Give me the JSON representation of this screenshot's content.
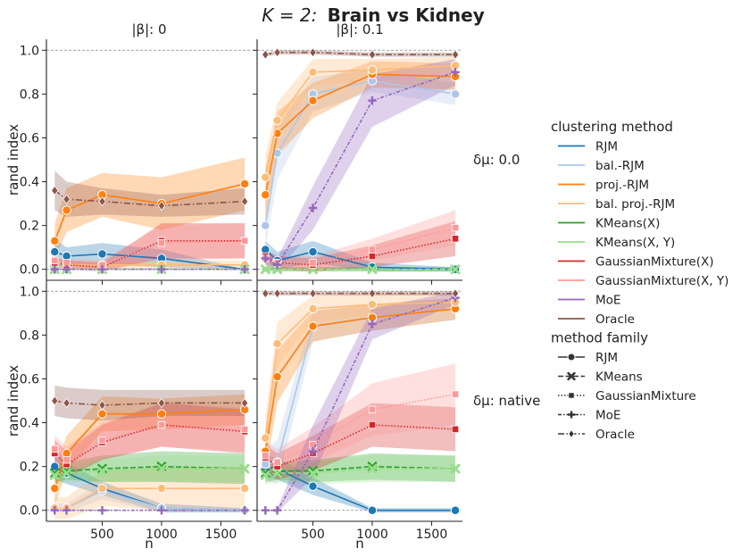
{
  "chart_data": {
    "type": "line",
    "title": "K = 2: Brain vs Kidney",
    "title_math": "K = 2:",
    "title_bold": "Brain vs Kidney",
    "xlabel": "n",
    "ylabel": "rand index",
    "xlim": [
      30,
      1760
    ],
    "ylim": [
      -0.05,
      1.05
    ],
    "x_ticks": [
      500,
      1000,
      1500
    ],
    "x_tick_labels": [
      "500",
      "1000",
      "1500"
    ],
    "y_ticks": [
      0.0,
      0.2,
      0.4,
      0.6,
      0.8,
      1.0
    ],
    "y_tick_labels": [
      "0.0",
      "0.2",
      "0.4",
      "0.6",
      "0.8",
      "1.0"
    ],
    "reference_lines": [
      0.0,
      1.0
    ],
    "col_titles": [
      "|β|: 0",
      "|β|: 0.1"
    ],
    "row_titles": [
      "δμ: 0.0",
      "δμ: native"
    ],
    "x": [
      100,
      200,
      500,
      1000,
      1700
    ],
    "legend": {
      "title_methods": "clustering method",
      "title_families": "method family",
      "methods": [
        {
          "name": "RJM",
          "color": "#1f77b4",
          "family": "RJM"
        },
        {
          "name": "bal.-RJM",
          "color": "#aec7e8",
          "family": "RJM"
        },
        {
          "name": "proj.-RJM",
          "color": "#ff7f0e",
          "family": "RJM"
        },
        {
          "name": "bal. proj.-RJM",
          "color": "#ffbb78",
          "family": "RJM"
        },
        {
          "name": "KMeans(X)",
          "color": "#2ca02c",
          "family": "KMeans"
        },
        {
          "name": "KMeans(X, Y)",
          "color": "#98df8a",
          "family": "KMeans"
        },
        {
          "name": "GaussianMixture(X)",
          "color": "#d62728",
          "family": "GaussianMixture"
        },
        {
          "name": "GaussianMixture(X, Y)",
          "color": "#ff9896",
          "family": "GaussianMixture"
        },
        {
          "name": "MoE",
          "color": "#9467bd",
          "family": "MoE"
        },
        {
          "name": "Oracle",
          "color": "#8c564b",
          "family": "Oracle"
        }
      ],
      "families": [
        "RJM",
        "KMeans",
        "GaussianMixture",
        "MoE",
        "Oracle"
      ]
    },
    "panels": [
      {
        "row": 0,
        "col": 0,
        "series": [
          {
            "name": "RJM",
            "values": [
              0.08,
              0.06,
              0.07,
              0.05,
              0.0
            ],
            "band": [
              0.06,
              0.04,
              0.05,
              0.04,
              0.0
            ]
          },
          {
            "name": "bal.-RJM",
            "values": [
              0.0,
              0.0,
              0.0,
              0.0,
              0.0
            ],
            "band": [
              0.0,
              0.0,
              0.0,
              0.0,
              0.0
            ]
          },
          {
            "name": "proj.-RJM",
            "values": [
              0.13,
              0.27,
              0.34,
              0.3,
              0.39
            ],
            "band": [
              0.08,
              0.1,
              0.1,
              0.12,
              0.12
            ]
          },
          {
            "name": "bal. proj.-RJM",
            "values": [
              0.03,
              0.02,
              0.02,
              0.02,
              0.02
            ],
            "band": [
              0.02,
              0.02,
              0.02,
              0.02,
              0.02
            ]
          },
          {
            "name": "KMeans(X)",
            "values": [
              0.0,
              0.0,
              0.0,
              0.0,
              0.0
            ],
            "band": [
              0.0,
              0.0,
              0.0,
              0.0,
              0.0
            ]
          },
          {
            "name": "KMeans(X, Y)",
            "values": [
              0.0,
              0.0,
              0.0,
              0.0,
              0.0
            ],
            "band": [
              0.0,
              0.0,
              0.0,
              0.0,
              0.0
            ]
          },
          {
            "name": "GaussianMixture(X)",
            "values": [
              0.03,
              0.02,
              0.01,
              0.13,
              0.13
            ],
            "band": [
              0.02,
              0.02,
              0.02,
              0.08,
              0.08
            ]
          },
          {
            "name": "GaussianMixture(X, Y)",
            "values": [
              0.04,
              0.03,
              0.02,
              0.12,
              0.13
            ],
            "band": [
              0.02,
              0.02,
              0.02,
              0.08,
              0.08
            ]
          },
          {
            "name": "MoE",
            "values": [
              0.0,
              0.0,
              0.0,
              0.0,
              0.0
            ],
            "band": [
              0.0,
              0.0,
              0.0,
              0.0,
              0.0
            ]
          },
          {
            "name": "Oracle",
            "values": [
              0.36,
              0.32,
              0.31,
              0.29,
              0.31
            ],
            "band": [
              0.09,
              0.08,
              0.06,
              0.05,
              0.06
            ]
          }
        ]
      },
      {
        "row": 0,
        "col": 1,
        "series": [
          {
            "name": "RJM",
            "values": [
              0.09,
              0.04,
              0.08,
              0.01,
              0.0
            ],
            "band": [
              0.04,
              0.04,
              0.05,
              0.02,
              0.01
            ]
          },
          {
            "name": "bal.-RJM",
            "values": [
              0.2,
              0.53,
              0.8,
              0.86,
              0.8
            ],
            "band": [
              0.1,
              0.12,
              0.08,
              0.05,
              0.05
            ]
          },
          {
            "name": "proj.-RJM",
            "values": [
              0.34,
              0.62,
              0.77,
              0.89,
              0.88
            ],
            "band": [
              0.12,
              0.1,
              0.08,
              0.06,
              0.06
            ]
          },
          {
            "name": "bal. proj.-RJM",
            "values": [
              0.42,
              0.68,
              0.9,
              0.91,
              0.93
            ],
            "band": [
              0.1,
              0.08,
              0.06,
              0.05,
              0.04
            ]
          },
          {
            "name": "KMeans(X)",
            "values": [
              0.0,
              0.0,
              0.0,
              0.0,
              0.0
            ],
            "band": [
              0.01,
              0.01,
              0.01,
              0.01,
              0.01
            ]
          },
          {
            "name": "KMeans(X, Y)",
            "values": [
              0.0,
              0.0,
              0.0,
              0.0,
              0.0
            ],
            "band": [
              0.01,
              0.01,
              0.01,
              0.01,
              0.01
            ]
          },
          {
            "name": "GaussianMixture(X)",
            "values": [
              0.06,
              0.03,
              0.02,
              0.06,
              0.14
            ],
            "band": [
              0.03,
              0.03,
              0.03,
              0.05,
              0.08
            ]
          },
          {
            "name": "GaussianMixture(X, Y)",
            "values": [
              0.05,
              0.03,
              0.03,
              0.09,
              0.19
            ],
            "band": [
              0.03,
              0.03,
              0.03,
              0.05,
              0.08
            ]
          },
          {
            "name": "MoE",
            "values": [
              0.05,
              0.02,
              0.28,
              0.77,
              0.9
            ],
            "band": [
              0.03,
              0.03,
              0.1,
              0.12,
              0.06
            ]
          },
          {
            "name": "Oracle",
            "values": [
              0.98,
              0.99,
              0.99,
              0.98,
              0.98
            ],
            "band": [
              0.01,
              0.01,
              0.01,
              0.01,
              0.01
            ]
          }
        ]
      },
      {
        "row": 1,
        "col": 0,
        "series": [
          {
            "name": "RJM",
            "values": [
              0.2,
              0.17,
              0.1,
              0.01,
              0.0
            ],
            "band": [
              0.06,
              0.05,
              0.03,
              0.02,
              0.01
            ]
          },
          {
            "name": "bal.-RJM",
            "values": [
              0.01,
              0.01,
              0.09,
              0.01,
              0.0
            ],
            "band": [
              0.02,
              0.02,
              0.04,
              0.02,
              0.01
            ]
          },
          {
            "name": "proj.-RJM",
            "values": [
              0.1,
              0.26,
              0.44,
              0.44,
              0.46
            ],
            "band": [
              0.08,
              0.08,
              0.08,
              0.07,
              0.07
            ]
          },
          {
            "name": "bal. proj.-RJM",
            "values": [
              0.01,
              0.01,
              0.1,
              0.1,
              0.1
            ],
            "band": [
              0.05,
              0.05,
              0.08,
              0.1,
              0.1
            ]
          },
          {
            "name": "KMeans(X)",
            "values": [
              0.17,
              0.18,
              0.19,
              0.2,
              0.19
            ],
            "band": [
              0.04,
              0.04,
              0.06,
              0.07,
              0.07
            ]
          },
          {
            "name": "KMeans(X, Y)",
            "values": [
              0.16,
              0.17,
              0.18,
              0.19,
              0.19
            ],
            "band": [
              0.04,
              0.04,
              0.05,
              0.06,
              0.06
            ]
          },
          {
            "name": "GaussianMixture(X)",
            "values": [
              0.26,
              0.21,
              0.31,
              0.39,
              0.36
            ],
            "band": [
              0.06,
              0.06,
              0.08,
              0.1,
              0.1
            ]
          },
          {
            "name": "GaussianMixture(X, Y)",
            "values": [
              0.28,
              0.23,
              0.32,
              0.39,
              0.37
            ],
            "band": [
              0.06,
              0.06,
              0.08,
              0.1,
              0.1
            ]
          },
          {
            "name": "MoE",
            "values": [
              0.0,
              0.0,
              0.0,
              0.0,
              0.0
            ],
            "band": [
              0.0,
              0.0,
              0.0,
              0.0,
              0.0
            ]
          },
          {
            "name": "Oracle",
            "values": [
              0.5,
              0.49,
              0.48,
              0.49,
              0.49
            ],
            "band": [
              0.07,
              0.07,
              0.07,
              0.06,
              0.06
            ]
          }
        ]
      },
      {
        "row": 1,
        "col": 1,
        "series": [
          {
            "name": "RJM",
            "values": [
              0.2,
              0.19,
              0.11,
              0.0,
              0.0
            ],
            "band": [
              0.05,
              0.05,
              0.04,
              0.01,
              0.01
            ]
          },
          {
            "name": "bal.-RJM",
            "values": [
              0.21,
              0.22,
              0.84,
              0.88,
              0.92
            ],
            "band": [
              0.07,
              0.1,
              0.07,
              0.06,
              0.05
            ]
          },
          {
            "name": "proj.-RJM",
            "values": [
              0.27,
              0.61,
              0.84,
              0.88,
              0.92
            ],
            "band": [
              0.1,
              0.12,
              0.07,
              0.06,
              0.05
            ]
          },
          {
            "name": "bal. proj.-RJM",
            "values": [
              0.33,
              0.76,
              0.92,
              0.94,
              0.95
            ],
            "band": [
              0.1,
              0.1,
              0.06,
              0.05,
              0.04
            ]
          },
          {
            "name": "KMeans(X)",
            "values": [
              0.17,
              0.18,
              0.18,
              0.2,
              0.19
            ],
            "band": [
              0.04,
              0.04,
              0.05,
              0.06,
              0.06
            ]
          },
          {
            "name": "KMeans(X, Y)",
            "values": [
              0.16,
              0.17,
              0.17,
              0.19,
              0.19
            ],
            "band": [
              0.04,
              0.04,
              0.05,
              0.06,
              0.06
            ]
          },
          {
            "name": "GaussianMixture(X)",
            "values": [
              0.24,
              0.2,
              0.26,
              0.39,
              0.37
            ],
            "band": [
              0.06,
              0.06,
              0.08,
              0.1,
              0.1
            ]
          },
          {
            "name": "GaussianMixture(X, Y)",
            "values": [
              0.25,
              0.22,
              0.3,
              0.46,
              0.53
            ],
            "band": [
              0.06,
              0.06,
              0.08,
              0.12,
              0.14
            ]
          },
          {
            "name": "MoE",
            "values": [
              0.0,
              0.0,
              0.27,
              0.85,
              0.97
            ],
            "band": [
              0.0,
              0.01,
              0.12,
              0.07,
              0.03
            ]
          },
          {
            "name": "Oracle",
            "values": [
              0.99,
              0.99,
              0.99,
              0.99,
              0.99
            ],
            "band": [
              0.01,
              0.01,
              0.01,
              0.01,
              0.01
            ]
          }
        ]
      }
    ]
  }
}
